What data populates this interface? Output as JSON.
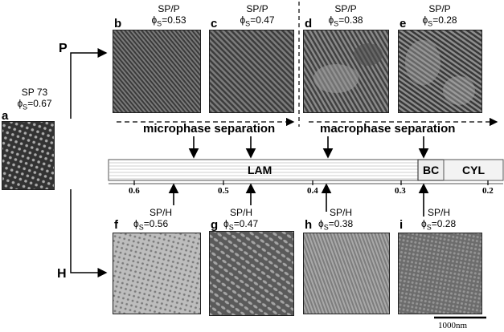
{
  "panels": {
    "a": {
      "letter": "a",
      "line1": "SP 73",
      "phi": "=0.67"
    },
    "b": {
      "letter": "b",
      "line1": "SP/P",
      "phi": "=0.53"
    },
    "c": {
      "letter": "c",
      "line1": "SP/P",
      "phi": "=0.47"
    },
    "d": {
      "letter": "d",
      "line1": "SP/P",
      "phi": "=0.38"
    },
    "e": {
      "letter": "e",
      "line1": "SP/P",
      "phi": "=0.28"
    },
    "f": {
      "letter": "f",
      "line1": "SP/H",
      "phi": "=0.56"
    },
    "g": {
      "letter": "g",
      "line1": "SP/H",
      "phi": "=0.47"
    },
    "h": {
      "letter": "h",
      "line1": "SP/H",
      "phi": "=0.38"
    },
    "i": {
      "letter": "i",
      "line1": "SP/H",
      "phi": "=0.28"
    }
  },
  "phi_symbol": "ϕ",
  "phi_sub": "S",
  "branch_labels": {
    "p": "P",
    "h": "H"
  },
  "separation": {
    "micro": "microphase separation",
    "macro": "macrophase separation"
  },
  "phase_bar": {
    "lam": "LAM",
    "bc": "BC",
    "cyl": "CYL",
    "ticks": [
      "0.6",
      "0.5",
      "0.4",
      "0.3",
      "0.2"
    ]
  },
  "scale_bar": "1000nm"
}
